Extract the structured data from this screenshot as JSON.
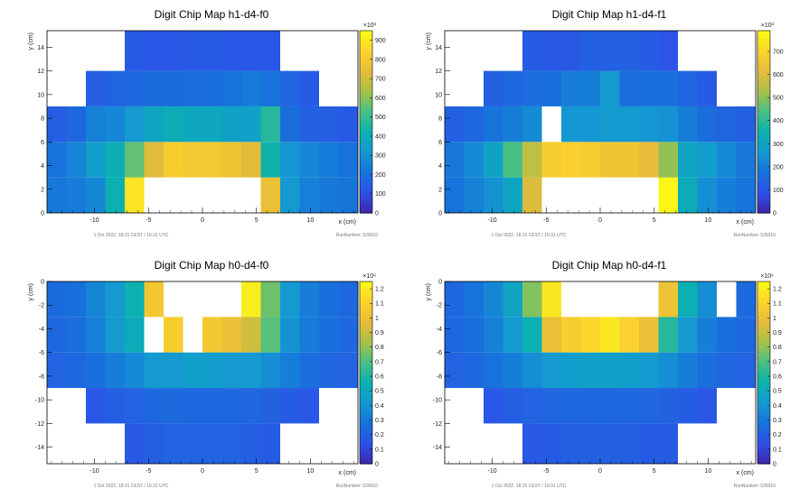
{
  "colorscale": [
    "#3d26a8",
    "#2f4fe8",
    "#1772db",
    "#1498d2",
    "#0bb1b0",
    "#47bf84",
    "#a6c249",
    "#e6bb3a",
    "#fcd32c",
    "#f9fb15"
  ],
  "chart_data": [
    {
      "type": "heatmap",
      "title": "Digit Chip Map h1-d4-f0",
      "xlabel": "x (cm)",
      "ylabel": "y (cm)",
      "xlim": [
        -14.4,
        14.4
      ],
      "ylim": [
        0,
        15.4
      ],
      "x_ticks": [
        -10,
        -5,
        0,
        5,
        10
      ],
      "y_ticks": [
        0,
        2,
        4,
        6,
        8,
        10,
        12,
        14
      ],
      "z_multiplier": "×10³",
      "zlim": [
        0,
        950
      ],
      "z_ticks": [
        0,
        100,
        200,
        300,
        400,
        500,
        600,
        700,
        800,
        900
      ],
      "z_tick_labels": [
        "0",
        "100",
        "200",
        "300",
        "400",
        "500",
        "600",
        "700",
        "800",
        "900"
      ],
      "footer_left": "1 Oct 2022, 18:31 CEST / 16:31 UTC",
      "footer_right": "RunNumber: 526010",
      "bin_x_edges": [
        -14.4,
        -12.6,
        -10.8,
        -9.0,
        -7.2,
        -5.4,
        -3.6,
        -1.8,
        0.0,
        1.8,
        3.6,
        5.4,
        7.2,
        9.0,
        10.8,
        12.6,
        14.4
      ],
      "bin_y_edges": [
        0,
        3.0,
        6.0,
        9.0,
        12.0,
        15.4
      ],
      "bins": [
        [
          230,
          240,
          270,
          420,
          890,
          0,
          0,
          0,
          0,
          0,
          0,
          760,
          320,
          250,
          230,
          220
        ],
        [
          210,
          260,
          340,
          410,
          560,
          730,
          820,
          800,
          800,
          780,
          730,
          430,
          310,
          270,
          240,
          210
        ],
        [
          150,
          180,
          250,
          270,
          320,
          370,
          400,
          380,
          380,
          360,
          350,
          470,
          200,
          160,
          150,
          140
        ],
        [
          null,
          null,
          150,
          170,
          180,
          190,
          190,
          200,
          200,
          210,
          240,
          210,
          170,
          140,
          null,
          null
        ],
        [
          null,
          null,
          null,
          null,
          140,
          130,
          130,
          140,
          140,
          130,
          130,
          130,
          null,
          null,
          null,
          null
        ]
      ]
    },
    {
      "type": "heatmap",
      "title": "Digit Chip Map h1-d4-f1",
      "xlabel": "x (cm)",
      "ylabel": "y (cm)",
      "xlim": [
        -14.4,
        14.4
      ],
      "ylim": [
        0,
        15.4
      ],
      "x_ticks": [
        -10,
        -5,
        0,
        5,
        10
      ],
      "y_ticks": [
        0,
        2,
        4,
        6,
        8,
        10,
        12,
        14
      ],
      "z_multiplier": "×10³",
      "zlim": [
        0,
        790
      ],
      "z_ticks": [
        0,
        100,
        200,
        300,
        400,
        500,
        600,
        700
      ],
      "z_tick_labels": [
        "0",
        "100",
        "200",
        "300",
        "400",
        "500",
        "600",
        "700"
      ],
      "footer_left": "1 Oct 2022, 18:31 CEST / 16:31 UTC",
      "footer_right": "RunNumber: 526010",
      "bin_x_edges": [
        -14.4,
        -12.6,
        -10.8,
        -9.0,
        -7.2,
        -5.4,
        -3.6,
        -1.8,
        0.0,
        1.8,
        3.6,
        5.4,
        7.2,
        9.0,
        10.8,
        12.6,
        14.4
      ],
      "bin_y_edges": [
        0,
        3.0,
        6.0,
        9.0,
        12.0,
        15.4
      ],
      "bins": [
        [
          180,
          210,
          250,
          310,
          600,
          0,
          0,
          0,
          0,
          0,
          0,
          780,
          330,
          240,
          200,
          180
        ],
        [
          190,
          230,
          300,
          440,
          560,
          680,
          690,
          680,
          650,
          650,
          620,
          510,
          310,
          280,
          230,
          190
        ],
        [
          130,
          150,
          180,
          200,
          230,
          0,
          260,
          260,
          270,
          270,
          260,
          250,
          200,
          160,
          140,
          130
        ],
        [
          null,
          null,
          130,
          150,
          160,
          170,
          200,
          200,
          270,
          160,
          170,
          170,
          140,
          120,
          null,
          null
        ],
        [
          null,
          null,
          null,
          null,
          120,
          110,
          110,
          130,
          130,
          130,
          120,
          100,
          null,
          null,
          null,
          null
        ]
      ]
    },
    {
      "type": "heatmap",
      "title": "Digit Chip Map h0-d4-f0",
      "xlabel": "x (cm)",
      "ylabel": "y (cm)",
      "xlim": [
        -14.4,
        14.4
      ],
      "ylim": [
        -15.4,
        0
      ],
      "x_ticks": [
        -10,
        -5,
        0,
        5,
        10
      ],
      "y_ticks": [
        0,
        -2,
        -4,
        -6,
        -8,
        -10,
        -12,
        -14
      ],
      "z_multiplier": "×10⁶",
      "zlim": [
        0,
        1.25
      ],
      "z_ticks": [
        0,
        0.1,
        0.2,
        0.3,
        0.4,
        0.5,
        0.6,
        0.7,
        0.8,
        0.9,
        1,
        1.1,
        1.2
      ],
      "z_tick_labels": [
        "0",
        "0.1",
        "0.2",
        "0.3",
        "0.4",
        "0.5",
        "0.6",
        "0.7",
        "0.8",
        "0.9",
        "1",
        "1.1",
        "1.2"
      ],
      "footer_left": "1 Oct 2022, 18:31 CEST / 16:31 UTC",
      "footer_right": "RunNumber: 526010",
      "bin_x_edges": [
        -14.4,
        -12.6,
        -10.8,
        -9.0,
        -7.2,
        -5.4,
        -3.6,
        -1.8,
        0.0,
        1.8,
        3.6,
        5.4,
        7.2,
        9.0,
        10.8,
        12.6,
        14.4
      ],
      "bin_y_edges": [
        0,
        -3.0,
        -6.0,
        -9.0,
        -12.0,
        -15.4
      ],
      "bins_comment": "",
      "bins": [
        [
          0.25,
          0.27,
          0.35,
          0.42,
          0.55,
          1.05,
          0,
          0,
          0,
          0,
          1.2,
          0.75,
          0.42,
          0.32,
          0.27,
          0.24
        ],
        [
          0.24,
          0.26,
          0.33,
          0.43,
          0.52,
          0.0,
          1.08,
          0.0,
          1.05,
          1.0,
          0.92,
          0.72,
          0.4,
          0.31,
          0.27,
          0.24
        ],
        [
          0.22,
          0.24,
          0.27,
          0.32,
          0.36,
          0.42,
          0.42,
          0.45,
          0.45,
          0.42,
          0.42,
          0.38,
          0.32,
          0.26,
          0.23,
          0.22
        ],
        [
          null,
          null,
          0.17,
          0.2,
          0.22,
          0.24,
          0.25,
          0.24,
          0.24,
          0.24,
          0.23,
          0.21,
          0.19,
          0.17,
          null,
          null
        ],
        [
          null,
          null,
          null,
          null,
          0.18,
          0.2,
          0.22,
          0.22,
          0.22,
          0.22,
          0.2,
          0.19,
          null,
          null,
          null,
          null
        ]
      ]
    },
    {
      "type": "heatmap",
      "title": "Digit Chip Map h0-d4-f1",
      "xlabel": "x (cm)",
      "ylabel": "y (cm)",
      "xlim": [
        -14.4,
        14.4
      ],
      "ylim": [
        -15.4,
        0
      ],
      "x_ticks": [
        -10,
        -5,
        0,
        5,
        10
      ],
      "y_ticks": [
        0,
        -2,
        -4,
        -6,
        -8,
        -10,
        -12,
        -14
      ],
      "z_multiplier": "×10⁶",
      "zlim": [
        0,
        1.25
      ],
      "z_ticks": [
        0,
        0.1,
        0.2,
        0.3,
        0.4,
        0.5,
        0.6,
        0.7,
        0.8,
        0.9,
        1,
        1.1,
        1.2
      ],
      "z_tick_labels": [
        "0",
        "0.1",
        "0.2",
        "0.3",
        "0.4",
        "0.5",
        "0.6",
        "0.7",
        "0.8",
        "0.9",
        "1",
        "1.1",
        "1.2"
      ],
      "footer_left": "1 Oct 2022, 18:31 CEST / 16:31 UTC",
      "footer_right": "RunNumber: 526010",
      "bin_x_edges": [
        -14.4,
        -12.6,
        -10.8,
        -9.0,
        -7.2,
        -5.4,
        -3.6,
        -1.8,
        0.0,
        1.8,
        3.6,
        5.4,
        7.2,
        9.0,
        10.8,
        12.6,
        14.4
      ],
      "bin_y_edges": [
        0,
        -3.0,
        -6.0,
        -9.0,
        -12.0,
        -15.4
      ],
      "bins": [
        [
          0.24,
          0.28,
          0.35,
          0.48,
          0.78,
          1.18,
          0,
          0,
          0,
          0,
          0,
          1.02,
          0.55,
          0.38,
          0,
          0.25
        ],
        [
          0.24,
          0.27,
          0.33,
          0.42,
          0.55,
          1.0,
          1.08,
          1.12,
          1.18,
          1.1,
          1.0,
          0.62,
          0.42,
          0.32,
          0.27,
          0.24
        ],
        [
          0.22,
          0.24,
          0.28,
          0.32,
          0.38,
          0.42,
          0.45,
          0.46,
          0.46,
          0.45,
          0.43,
          0.38,
          0.32,
          0.26,
          0.23,
          0.22
        ],
        [
          null,
          null,
          0.17,
          0.2,
          0.22,
          0.23,
          0.24,
          0.24,
          0.24,
          0.24,
          0.23,
          0.21,
          0.19,
          0.17,
          null,
          null
        ],
        [
          null,
          null,
          null,
          null,
          0.18,
          0.19,
          0.2,
          0.21,
          0.21,
          0.2,
          0.19,
          0.19,
          null,
          null,
          null,
          null
        ]
      ]
    }
  ]
}
